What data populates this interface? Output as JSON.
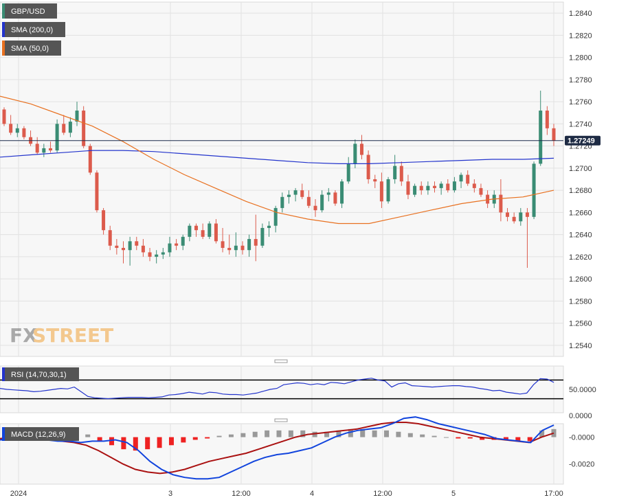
{
  "chart_data": {
    "type": "candlestick",
    "main": {
      "symbol": "GBP/USD",
      "indicators": [
        {
          "label": "SMA (200,0)",
          "color": "#2233cc"
        },
        {
          "label": "SMA (50,0)",
          "color": "#e8701f"
        }
      ],
      "last_price": "1.27249",
      "last_price_value": 1.27249,
      "ylim": [
        1.253,
        1.285
      ],
      "yticks": [
        "1.2840",
        "1.2820",
        "1.2800",
        "1.2780",
        "1.2760",
        "1.2740",
        "1.2720",
        "1.2700",
        "1.2680",
        "1.2660",
        "1.2640",
        "1.2620",
        "1.2600",
        "1.2580",
        "1.2560",
        "1.2540"
      ],
      "up_color": "#3a8c74",
      "down_color": "#dc5b4c",
      "candles": [
        [
          1.2753,
          1.2755,
          1.2738,
          1.274
        ],
        [
          1.274,
          1.2748,
          1.273,
          1.2732
        ],
        [
          1.2732,
          1.274,
          1.2728,
          1.2736
        ],
        [
          1.2736,
          1.2738,
          1.2726,
          1.2728
        ],
        [
          1.2728,
          1.2734,
          1.272,
          1.2722
        ],
        [
          1.2722,
          1.2728,
          1.2712,
          1.2714
        ],
        [
          1.2714,
          1.2722,
          1.271,
          1.2718
        ],
        [
          1.2718,
          1.2724,
          1.2714,
          1.2716
        ],
        [
          1.2716,
          1.2744,
          1.2714,
          1.274
        ],
        [
          1.274,
          1.2748,
          1.273,
          1.2732
        ],
        [
          1.2732,
          1.2746,
          1.2728,
          1.2742
        ],
        [
          1.2742,
          1.276,
          1.2738,
          1.2752
        ],
        [
          1.2752,
          1.2756,
          1.2718,
          1.272
        ],
        [
          1.272,
          1.2722,
          1.2694,
          1.2696
        ],
        [
          1.2696,
          1.2698,
          1.266,
          1.2662
        ],
        [
          1.2662,
          1.2664,
          1.264,
          1.2644
        ],
        [
          1.2644,
          1.2648,
          1.2626,
          1.263
        ],
        [
          1.263,
          1.2636,
          1.2622,
          1.2628
        ],
        [
          1.2628,
          1.2634,
          1.2614,
          1.2626
        ],
        [
          1.2626,
          1.2638,
          1.2612,
          1.2634
        ],
        [
          1.2634,
          1.2638,
          1.2626,
          1.263
        ],
        [
          1.263,
          1.2636,
          1.262,
          1.2624
        ],
        [
          1.2624,
          1.2628,
          1.2616,
          1.262
        ],
        [
          1.262,
          1.2626,
          1.2614,
          1.2622
        ],
        [
          1.2622,
          1.2628,
          1.2618,
          1.2624
        ],
        [
          1.2624,
          1.2638,
          1.262,
          1.2632
        ],
        [
          1.2632,
          1.2636,
          1.2626,
          1.263
        ],
        [
          1.263,
          1.264,
          1.2626,
          1.2638
        ],
        [
          1.2638,
          1.265,
          1.2634,
          1.2648
        ],
        [
          1.2648,
          1.265,
          1.2638,
          1.2644
        ],
        [
          1.2644,
          1.265,
          1.2636,
          1.2638
        ],
        [
          1.2638,
          1.2652,
          1.2636,
          1.265
        ],
        [
          1.265,
          1.2654,
          1.2632,
          1.2634
        ],
        [
          1.2634,
          1.2646,
          1.2624,
          1.2628
        ],
        [
          1.2628,
          1.264,
          1.2622,
          1.2626
        ],
        [
          1.2626,
          1.2642,
          1.262,
          1.263
        ],
        [
          1.263,
          1.2634,
          1.2622,
          1.2626
        ],
        [
          1.2626,
          1.264,
          1.262,
          1.2636
        ],
        [
          1.2636,
          1.2658,
          1.2616,
          1.263
        ],
        [
          1.263,
          1.265,
          1.2628,
          1.2646
        ],
        [
          1.2646,
          1.2652,
          1.2638,
          1.2648
        ],
        [
          1.2648,
          1.2666,
          1.2642,
          1.2664
        ],
        [
          1.2664,
          1.2678,
          1.266,
          1.2674
        ],
        [
          1.2674,
          1.268,
          1.2668,
          1.2676
        ],
        [
          1.2676,
          1.2682,
          1.267,
          1.268
        ],
        [
          1.268,
          1.2686,
          1.2672,
          1.2674
        ],
        [
          1.2674,
          1.268,
          1.2664,
          1.2666
        ],
        [
          1.2666,
          1.2672,
          1.2656,
          1.2662
        ],
        [
          1.2662,
          1.268,
          1.266,
          1.2676
        ],
        [
          1.2676,
          1.2682,
          1.267,
          1.2678
        ],
        [
          1.2678,
          1.268,
          1.2666,
          1.2668
        ],
        [
          1.2668,
          1.269,
          1.2664,
          1.2688
        ],
        [
          1.2688,
          1.271,
          1.2686,
          1.2704
        ],
        [
          1.2704,
          1.2726,
          1.27,
          1.2722
        ],
        [
          1.2722,
          1.273,
          1.2708,
          1.2712
        ],
        [
          1.2712,
          1.2716,
          1.2686,
          1.269
        ],
        [
          1.269,
          1.2694,
          1.2682,
          1.2688
        ],
        [
          1.2688,
          1.2696,
          1.2664,
          1.267
        ],
        [
          1.267,
          1.2692,
          1.2668,
          1.269
        ],
        [
          1.269,
          1.2712,
          1.2686,
          1.2702
        ],
        [
          1.2702,
          1.2706,
          1.2684,
          1.2688
        ],
        [
          1.2688,
          1.2694,
          1.2672,
          1.2676
        ],
        [
          1.2676,
          1.2686,
          1.2674,
          1.2684
        ],
        [
          1.2684,
          1.2688,
          1.2676,
          1.268
        ],
        [
          1.268,
          1.2688,
          1.2676,
          1.2684
        ],
        [
          1.2684,
          1.2688,
          1.2678,
          1.2682
        ],
        [
          1.2682,
          1.2688,
          1.2676,
          1.2686
        ],
        [
          1.2686,
          1.269,
          1.2678,
          1.268
        ],
        [
          1.268,
          1.2692,
          1.2678,
          1.2688
        ],
        [
          1.2688,
          1.2696,
          1.2682,
          1.2694
        ],
        [
          1.2694,
          1.2698,
          1.2684,
          1.2686
        ],
        [
          1.2686,
          1.269,
          1.2678,
          1.2682
        ],
        [
          1.2682,
          1.2686,
          1.2674,
          1.2676
        ],
        [
          1.2676,
          1.268,
          1.2664,
          1.2668
        ],
        [
          1.2668,
          1.268,
          1.2664,
          1.2676
        ],
        [
          1.2676,
          1.269,
          1.2652,
          1.266
        ],
        [
          1.266,
          1.2664,
          1.2652,
          1.2656
        ],
        [
          1.2656,
          1.266,
          1.265,
          1.2652
        ],
        [
          1.2652,
          1.2664,
          1.2648,
          1.266
        ],
        [
          1.266,
          1.2664,
          1.261,
          1.2656
        ],
        [
          1.2656,
          1.2706,
          1.2654,
          1.2704
        ],
        [
          1.2704,
          1.277,
          1.2702,
          1.2752
        ],
        [
          1.2752,
          1.2756,
          1.273,
          1.2736
        ],
        [
          1.2736,
          1.274,
          1.272,
          1.2725
        ]
      ],
      "sma200": [
        1.271,
        1.2712,
        1.2714,
        1.2716,
        1.2716,
        1.2715,
        1.2713,
        1.2711,
        1.2709,
        1.2707,
        1.2705,
        1.2704,
        1.2704,
        1.2705,
        1.2706,
        1.2707,
        1.2708,
        1.2708,
        1.2709
      ],
      "sma50": [
        1.2765,
        1.2758,
        1.2748,
        1.2738,
        1.2724,
        1.2708,
        1.2694,
        1.2682,
        1.267,
        1.266,
        1.2654,
        1.265,
        1.265,
        1.2656,
        1.2662,
        1.2668,
        1.2672,
        1.2674,
        1.268
      ]
    },
    "rsi": {
      "label": "RSI (14,70,30,1)",
      "overbought": 70,
      "oversold": 30,
      "ylim": [
        0,
        100
      ],
      "yticks": [
        "50.0000",
        "0.0000"
      ],
      "color": "#2233cc",
      "values": [
        52,
        50,
        49,
        48,
        47,
        45,
        46,
        48,
        50,
        52,
        51,
        55,
        45,
        35,
        32,
        31,
        30,
        31,
        32,
        33,
        33,
        33,
        32,
        33,
        34,
        38,
        39,
        41,
        44,
        42,
        40,
        44,
        43,
        40,
        39,
        39,
        38,
        40,
        42,
        46,
        50,
        52,
        60,
        62,
        64,
        63,
        60,
        62,
        60,
        65,
        64,
        62,
        66,
        70,
        72,
        74,
        70,
        68,
        55,
        62,
        64,
        58,
        57,
        56,
        55,
        56,
        57,
        58,
        58,
        56,
        55,
        52,
        50,
        47,
        48,
        44,
        42,
        40,
        42,
        60,
        73,
        72,
        65
      ],
      "extra_x_ticks_hidden": []
    },
    "macd": {
      "label": "MACD (12,26,9)",
      "ylim": [
        -0.0035,
        0.001
      ],
      "yticks": [
        "-0.0000",
        "-0.0020"
      ],
      "macd_color": "#1144dd",
      "signal_color": "#aa1111",
      "hist_up_color": "#999999",
      "hist_down_color": "#ee2222",
      "macd": [
        -0.0002,
        -0.0002,
        -0.0001,
        -0.0001,
        -0.0002,
        -0.0003,
        -0.0003,
        -0.0004,
        -0.0003,
        -0.0003,
        -0.0002,
        -0.0004,
        -0.001,
        -0.0018,
        -0.0024,
        -0.0028,
        -0.003,
        -0.0031,
        -0.0031,
        -0.003,
        -0.0026,
        -0.0022,
        -0.0018,
        -0.0015,
        -0.0013,
        -0.0012,
        -0.001,
        -0.0008,
        -0.0004,
        0.0,
        0.0003,
        0.0005,
        0.0006,
        0.0007,
        0.001,
        0.0014,
        0.0015,
        0.0013,
        0.001,
        0.0008,
        0.0006,
        0.0004,
        0.0002,
        -0.0001,
        -0.0002,
        -0.0003,
        -0.0004,
        0.0005,
        0.0009
      ],
      "signal": [
        -0.0001,
        -0.0002,
        -0.0002,
        -0.0002,
        -0.0002,
        -0.0003,
        -0.0004,
        -0.0006,
        -0.001,
        -0.0015,
        -0.002,
        -0.0024,
        -0.0026,
        -0.0027,
        -0.0026,
        -0.0024,
        -0.0021,
        -0.0018,
        -0.0016,
        -0.0014,
        -0.0012,
        -0.0009,
        -0.0006,
        -0.0003,
        -0.0,
        0.0002,
        0.0003,
        0.0004,
        0.0005,
        0.0006,
        0.0008,
        0.001,
        0.0011,
        0.0011,
        0.001,
        0.0008,
        0.0006,
        0.0004,
        0.0002,
        0.0,
        -0.0001,
        -0.0002,
        -0.0003,
        -0.0004,
        0.0,
        0.0003
      ],
      "histogram": [
        -0.0001,
        0.0,
        0.0,
        0.0001,
        0.0,
        0.0,
        0.0001,
        0.0002,
        -0.0003,
        -0.0006,
        -0.0009,
        -0.001,
        -0.0009,
        -0.0008,
        -0.0006,
        -0.0004,
        -0.0002,
        -0.0001,
        0.0001,
        0.0002,
        0.0003,
        0.0004,
        0.0005,
        0.0005,
        0.0005,
        0.0005,
        0.0004,
        0.0004,
        0.0005,
        0.0006,
        0.0006,
        0.0005,
        0.0005,
        0.0004,
        0.0003,
        0.0002,
        0.0001,
        0.0,
        -0.0001,
        -0.0001,
        -0.0002,
        -0.0002,
        -0.0002,
        -0.0003,
        -0.0003,
        0.0005,
        0.0006
      ]
    },
    "x_labels": [
      "2024",
      "3",
      "12:00",
      "4",
      "12:00",
      "5",
      "17:00"
    ],
    "grid": true
  },
  "branding": {
    "logo_fx": "FX",
    "logo_street": "STREET"
  }
}
